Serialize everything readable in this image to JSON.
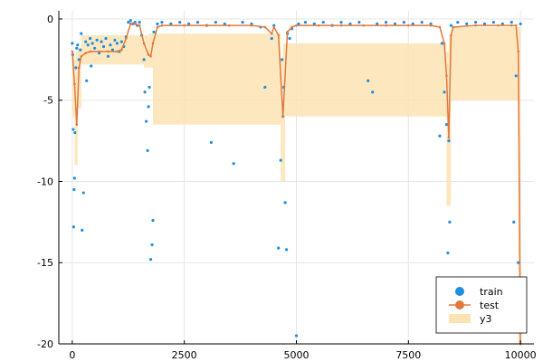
{
  "chart_data": {
    "type": "scatter",
    "xlim": [
      -300,
      10300
    ],
    "ylim": [
      -20,
      0.5
    ],
    "x_ticks": [
      0,
      2500,
      5000,
      7500,
      10000
    ],
    "x_tick_labels": [
      "0",
      "2500",
      "5000",
      "7500",
      "10000"
    ],
    "y_ticks": [
      0,
      -5,
      -10,
      -15,
      -20
    ],
    "y_tick_labels": [
      "0",
      "-5",
      "-10",
      "-15",
      "-20"
    ],
    "grid": true,
    "legend_position": "bottom-right",
    "colors": {
      "train": "#1f8fe0",
      "test": "#e07a3f",
      "y3": "#fde3b3"
    },
    "series": [
      {
        "name": "train",
        "kind": "scatter",
        "description_points": [
          [
            0,
            -1.5
          ],
          [
            10,
            -2.2
          ],
          [
            20,
            -6.8
          ],
          [
            30,
            -12.8
          ],
          [
            40,
            -10.5
          ],
          [
            50,
            -9.8
          ],
          [
            60,
            -7.0
          ],
          [
            80,
            -3.0
          ],
          [
            100,
            -1.8
          ],
          [
            120,
            -1.6
          ],
          [
            150,
            -2.5
          ],
          [
            180,
            -1.9
          ],
          [
            200,
            -0.9
          ],
          [
            220,
            -13.0
          ],
          [
            250,
            -10.7
          ],
          [
            300,
            -1.4
          ],
          [
            320,
            -3.8
          ],
          [
            350,
            -1.6
          ],
          [
            400,
            -1.2
          ],
          [
            420,
            -2.9
          ],
          [
            450,
            -1.5
          ],
          [
            500,
            -1.8
          ],
          [
            550,
            -1.3
          ],
          [
            600,
            -2.1
          ],
          [
            650,
            -1.4
          ],
          [
            700,
            -1.7
          ],
          [
            750,
            -1.2
          ],
          [
            800,
            -2.3
          ],
          [
            850,
            -1.6
          ],
          [
            900,
            -1.9
          ],
          [
            950,
            -1.3
          ],
          [
            1000,
            -1.5
          ],
          [
            1050,
            -2.0
          ],
          [
            1100,
            -1.4
          ],
          [
            1150,
            -1.7
          ],
          [
            1200,
            -1.1
          ],
          [
            1250,
            -0.2
          ],
          [
            1300,
            -0.1
          ],
          [
            1350,
            -0.3
          ],
          [
            1400,
            -0.2
          ],
          [
            1450,
            -0.4
          ],
          [
            1500,
            -0.2
          ],
          [
            1550,
            -1.0
          ],
          [
            1600,
            -2.5
          ],
          [
            1620,
            -4.5
          ],
          [
            1650,
            -6.3
          ],
          [
            1680,
            -8.1
          ],
          [
            1700,
            -5.4
          ],
          [
            1720,
            -4.2
          ],
          [
            1750,
            -14.8
          ],
          [
            1780,
            -13.9
          ],
          [
            1800,
            -12.4
          ],
          [
            1820,
            -0.8
          ],
          [
            1900,
            -0.3
          ],
          [
            2000,
            -0.2
          ],
          [
            2200,
            -0.3
          ],
          [
            2400,
            -0.2
          ],
          [
            2600,
            -0.3
          ],
          [
            2800,
            -0.2
          ],
          [
            3000,
            -0.4
          ],
          [
            3100,
            -7.6
          ],
          [
            3200,
            -0.2
          ],
          [
            3400,
            -0.3
          ],
          [
            3600,
            -8.9
          ],
          [
            3800,
            -0.2
          ],
          [
            4000,
            -0.3
          ],
          [
            4200,
            -0.5
          ],
          [
            4300,
            -4.2
          ],
          [
            4450,
            -1.2
          ],
          [
            4500,
            -0.4
          ],
          [
            4600,
            -14.1
          ],
          [
            4650,
            -8.7
          ],
          [
            4680,
            -2.5
          ],
          [
            4700,
            -6.0
          ],
          [
            4720,
            -4.2
          ],
          [
            4750,
            -11.3
          ],
          [
            4780,
            -14.2
          ],
          [
            4800,
            -0.9
          ],
          [
            4850,
            -1.2
          ],
          [
            4900,
            -0.6
          ],
          [
            5000,
            -19.5
          ],
          [
            5050,
            -0.3
          ],
          [
            5200,
            -0.2
          ],
          [
            5400,
            -0.3
          ],
          [
            5600,
            -0.2
          ],
          [
            5800,
            -0.4
          ],
          [
            6000,
            -0.2
          ],
          [
            6200,
            -0.3
          ],
          [
            6400,
            -0.2
          ],
          [
            6600,
            -3.8
          ],
          [
            6700,
            -4.5
          ],
          [
            6800,
            -0.3
          ],
          [
            7000,
            -0.2
          ],
          [
            7200,
            -0.3
          ],
          [
            7400,
            -0.2
          ],
          [
            7600,
            -0.3
          ],
          [
            7800,
            -0.2
          ],
          [
            8000,
            -0.3
          ],
          [
            8200,
            -7.2
          ],
          [
            8250,
            -1.5
          ],
          [
            8300,
            -4.5
          ],
          [
            8350,
            -6.5
          ],
          [
            8380,
            -14.4
          ],
          [
            8400,
            -7.5
          ],
          [
            8420,
            -12.5
          ],
          [
            8450,
            -0.4
          ],
          [
            8600,
            -0.2
          ],
          [
            8800,
            -0.3
          ],
          [
            9000,
            -0.2
          ],
          [
            9200,
            -0.3
          ],
          [
            9400,
            -0.2
          ],
          [
            9600,
            -0.3
          ],
          [
            9800,
            -0.2
          ],
          [
            9850,
            -12.5
          ],
          [
            9900,
            -3.5
          ],
          [
            9950,
            -15.0
          ],
          [
            10000,
            -0.3
          ]
        ]
      },
      {
        "name": "test",
        "kind": "line",
        "points": [
          [
            0,
            -2.0
          ],
          [
            50,
            -4.0
          ],
          [
            100,
            -6.5
          ],
          [
            150,
            -3.0
          ],
          [
            200,
            -2.3
          ],
          [
            300,
            -2.1
          ],
          [
            400,
            -2.0
          ],
          [
            600,
            -2.0
          ],
          [
            800,
            -2.0
          ],
          [
            1000,
            -2.0
          ],
          [
            1100,
            -1.9
          ],
          [
            1200,
            -1.2
          ],
          [
            1300,
            -0.3
          ],
          [
            1400,
            -0.3
          ],
          [
            1500,
            -0.4
          ],
          [
            1600,
            -1.5
          ],
          [
            1700,
            -2.2
          ],
          [
            1750,
            -2.3
          ],
          [
            1800,
            -1.5
          ],
          [
            1900,
            -0.5
          ],
          [
            2000,
            -0.4
          ],
          [
            2500,
            -0.4
          ],
          [
            3000,
            -0.4
          ],
          [
            3500,
            -0.4
          ],
          [
            4000,
            -0.4
          ],
          [
            4300,
            -0.5
          ],
          [
            4450,
            -0.9
          ],
          [
            4500,
            -0.5
          ],
          [
            4600,
            -1.0
          ],
          [
            4700,
            -6.0
          ],
          [
            4800,
            -0.8
          ],
          [
            4900,
            -0.5
          ],
          [
            5000,
            -0.4
          ],
          [
            5500,
            -0.4
          ],
          [
            6000,
            -0.4
          ],
          [
            6500,
            -0.4
          ],
          [
            7000,
            -0.4
          ],
          [
            7500,
            -0.4
          ],
          [
            8000,
            -0.4
          ],
          [
            8200,
            -0.5
          ],
          [
            8300,
            -1.5
          ],
          [
            8350,
            -3.5
          ],
          [
            8400,
            -7.3
          ],
          [
            8450,
            -1.0
          ],
          [
            8500,
            -0.5
          ],
          [
            9000,
            -0.4
          ],
          [
            9500,
            -0.4
          ],
          [
            9800,
            -0.4
          ],
          [
            9900,
            -0.4
          ],
          [
            9950,
            -2.0
          ],
          [
            10000,
            -20.0
          ]
        ]
      },
      {
        "name": "y3",
        "kind": "band",
        "ranges": [
          [
            0,
            -2.0,
            -2.0
          ],
          [
            50,
            -2.5,
            -6.0
          ],
          [
            80,
            -4.0,
            -9.0
          ],
          [
            120,
            -2.0,
            -5.5
          ],
          [
            200,
            -1.8,
            -2.8
          ],
          [
            1600,
            -1.0,
            -2.0
          ],
          [
            1700,
            -1.8,
            -3.0
          ],
          [
            1800,
            -0.9,
            -1.8
          ],
          [
            4650,
            -2.5,
            -6.5
          ],
          [
            4700,
            -4.0,
            -10.0
          ],
          [
            4750,
            -1.5,
            -5.0
          ],
          [
            8350,
            -2.0,
            -6.0
          ],
          [
            8400,
            -3.5,
            -11.5
          ],
          [
            8450,
            -1.0,
            -3.0
          ],
          [
            9950,
            -0.5,
            -5.0
          ],
          [
            10000,
            -2.0,
            -20.0
          ]
        ]
      }
    ]
  }
}
